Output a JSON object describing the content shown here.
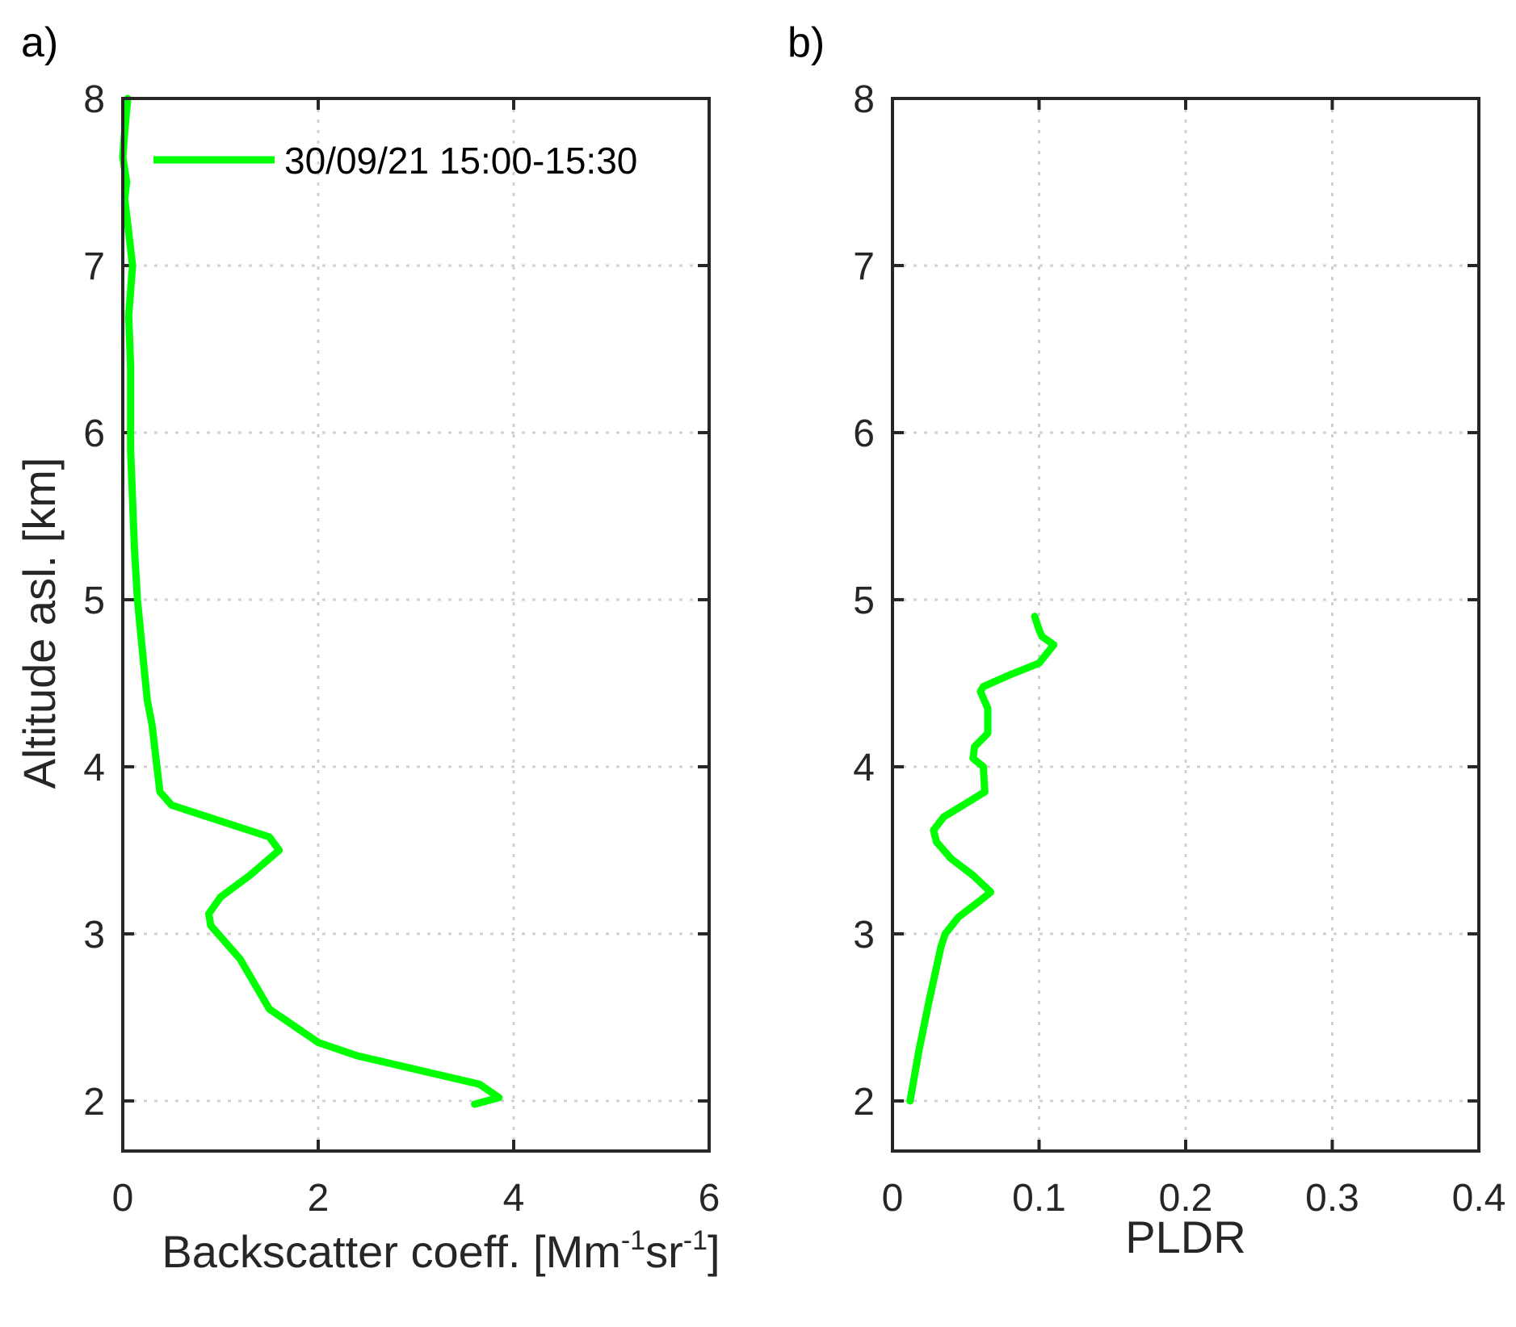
{
  "colors": {
    "series": "#00ff00",
    "axis": "#262626",
    "grid": "#d0d0d0"
  },
  "chart_data": [
    {
      "type": "line",
      "panel_label": "a)",
      "xlabel_main": "Backscatter coeff. [Mm",
      "xlabel_sup1": "-1",
      "xlabel_mid": "sr",
      "xlabel_sup2": "-1",
      "xlabel_end": "]",
      "ylabel": "Altitude asl. [km]",
      "xlim": [
        0,
        6
      ],
      "ylim": [
        1.7,
        8
      ],
      "xticks": [
        0,
        2,
        4,
        6
      ],
      "xtick_labels": [
        "0",
        "2",
        "4",
        "6"
      ],
      "yticks": [
        2,
        3,
        4,
        5,
        6,
        7,
        8
      ],
      "ytick_labels": [
        "2",
        "3",
        "4",
        "5",
        "6",
        "7",
        "8"
      ],
      "grid": true,
      "legend_position": "top-right",
      "series": [
        {
          "name": "30/09/21 15:00-15:30",
          "x": [
            3.6,
            3.85,
            3.65,
            2.4,
            2.0,
            1.5,
            1.2,
            0.9,
            0.88,
            1.0,
            1.3,
            1.6,
            1.5,
            0.5,
            0.38,
            0.35,
            0.3,
            0.25,
            0.2,
            0.15,
            0.12,
            0.1,
            0.08,
            0.08,
            0.08,
            0.06,
            0.1,
            0.06,
            0.02,
            0.04,
            0.0,
            0.02,
            0.05
          ],
          "y": [
            1.98,
            2.02,
            2.1,
            2.27,
            2.35,
            2.55,
            2.85,
            3.05,
            3.12,
            3.22,
            3.35,
            3.5,
            3.58,
            3.77,
            3.85,
            4.0,
            4.25,
            4.4,
            4.7,
            5.0,
            5.3,
            5.6,
            5.9,
            6.2,
            6.4,
            6.7,
            7.0,
            7.2,
            7.4,
            7.5,
            7.65,
            7.8,
            8.0
          ]
        }
      ]
    },
    {
      "type": "line",
      "panel_label": "b)",
      "xlabel": "PLDR",
      "ylabel": "",
      "xlim": [
        0,
        0.4
      ],
      "ylim": [
        1.7,
        8
      ],
      "xticks": [
        0,
        0.1,
        0.2,
        0.3,
        0.4
      ],
      "xtick_labels": [
        "0",
        "0.1",
        "0.2",
        "0.3",
        "0.4"
      ],
      "yticks": [
        2,
        3,
        4,
        5,
        6,
        7,
        8
      ],
      "ytick_labels": [
        "2",
        "3",
        "4",
        "5",
        "6",
        "7",
        "8"
      ],
      "grid": true,
      "series": [
        {
          "x": [
            0.012,
            0.018,
            0.025,
            0.03,
            0.033,
            0.036,
            0.045,
            0.06,
            0.067,
            0.055,
            0.04,
            0.03,
            0.028,
            0.035,
            0.05,
            0.063,
            0.062,
            0.055,
            0.056,
            0.065,
            0.065,
            0.06,
            0.062,
            0.08,
            0.1,
            0.11,
            0.102,
            0.1,
            0.097
          ],
          "y": [
            2.0,
            2.3,
            2.6,
            2.8,
            2.92,
            3.0,
            3.1,
            3.2,
            3.25,
            3.35,
            3.45,
            3.55,
            3.62,
            3.7,
            3.78,
            3.85,
            4.0,
            4.05,
            4.12,
            4.2,
            4.35,
            4.45,
            4.48,
            4.55,
            4.62,
            4.73,
            4.78,
            4.82,
            4.9
          ]
        }
      ]
    }
  ]
}
